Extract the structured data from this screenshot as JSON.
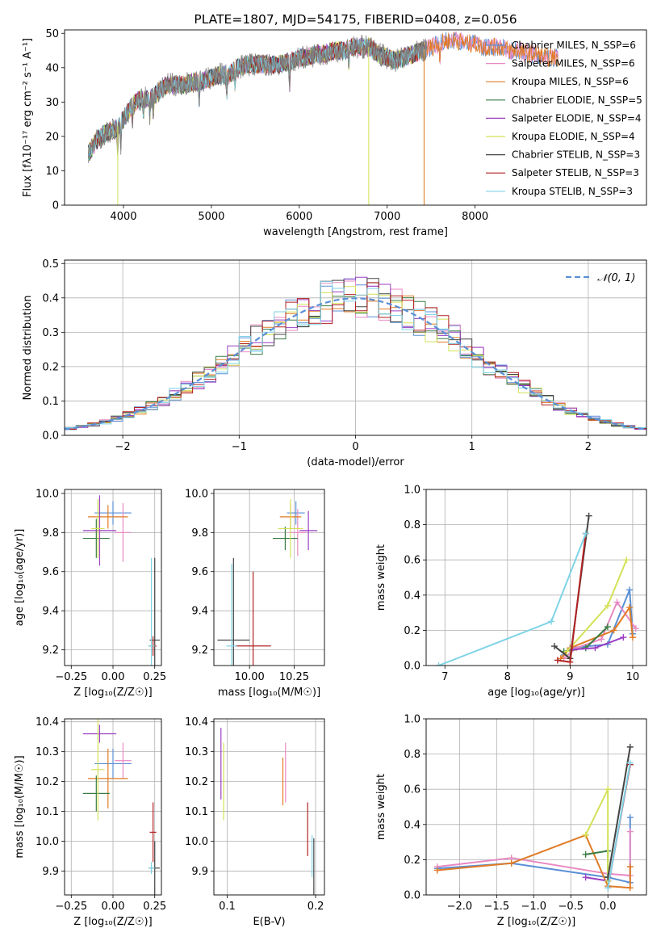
{
  "colors": {
    "Chabrier MILES": "#5a8fd6",
    "Salpeter MILES": "#e78ac3",
    "Kroupa MILES": "#e07b25",
    "Chabrier ELODIE": "#3a7d44",
    "Salpeter ELODIE": "#9a3fc4",
    "Kroupa ELODIE": "#d4e157",
    "Chabrier STELIB": "#444444",
    "Salpeter STELIB": "#b22222",
    "Kroupa STELIB": "#7fd3e6",
    "gaussian": "#5b8fd6",
    "grid": "#b0b0b0"
  },
  "chart_data": [
    {
      "id": "spectrum",
      "type": "line",
      "title": "PLATE=1807, MJD=54175, FIBERID=0408, z=0.056",
      "xlabel": "wavelength [Angstrom, rest frame]",
      "ylabel": "Flux [fλ10⁻¹⁷ erg cm⁻² s⁻¹ A⁻¹]",
      "xlim": [
        3330,
        9950
      ],
      "ylim": [
        0,
        51
      ],
      "xticks": [
        4000,
        5000,
        6000,
        7000,
        8000
      ],
      "yticks": [
        0,
        10,
        20,
        30,
        40,
        50
      ],
      "grid": false,
      "legend": "right",
      "legend_entries": [
        "Chabrier MILES, N_SSP=6",
        "Salpeter MILES, N_SSP=6",
        "Kroupa MILES, N_SSP=6",
        "Chabrier ELODIE, N_SSP=5",
        "Salpeter ELODIE, N_SSP=4",
        "Kroupa ELODIE, N_SSP=4",
        "Chabrier STELIB, N_SSP=3",
        "Salpeter STELIB, N_SSP=3",
        "Kroupa STELIB, N_SSP=3"
      ],
      "continuum": [
        [
          3600,
          15
        ],
        [
          3700,
          19
        ],
        [
          3800,
          21
        ],
        [
          3900,
          22
        ],
        [
          4000,
          25
        ],
        [
          4100,
          29
        ],
        [
          4200,
          31
        ],
        [
          4300,
          31
        ],
        [
          4400,
          33
        ],
        [
          4500,
          35
        ],
        [
          4600,
          35
        ],
        [
          4700,
          35
        ],
        [
          4800,
          36
        ],
        [
          4900,
          36
        ],
        [
          5000,
          37
        ],
        [
          5100,
          38
        ],
        [
          5200,
          38
        ],
        [
          5300,
          40
        ],
        [
          5400,
          41
        ],
        [
          5500,
          41
        ],
        [
          5600,
          41
        ],
        [
          5700,
          41
        ],
        [
          5800,
          41
        ],
        [
          5900,
          42
        ],
        [
          6000,
          43
        ],
        [
          6100,
          43
        ],
        [
          6200,
          44
        ],
        [
          6300,
          44
        ],
        [
          6400,
          45
        ],
        [
          6500,
          45
        ],
        [
          6600,
          46
        ],
        [
          6700,
          46
        ],
        [
          6800,
          46
        ],
        [
          6900,
          44
        ],
        [
          7000,
          43
        ],
        [
          7100,
          42
        ],
        [
          7200,
          43
        ],
        [
          7300,
          44
        ],
        [
          7400,
          45
        ],
        [
          7500,
          46
        ],
        [
          7600,
          47
        ],
        [
          7700,
          48
        ],
        [
          7800,
          48
        ],
        [
          7900,
          47
        ],
        [
          8000,
          47
        ],
        [
          8100,
          46
        ],
        [
          8200,
          46
        ],
        [
          8300,
          46
        ],
        [
          8400,
          45
        ],
        [
          8500,
          45
        ],
        [
          8600,
          44
        ],
        [
          8700,
          44
        ],
        [
          8800,
          43
        ],
        [
          8900,
          43
        ],
        [
          8950,
          43
        ]
      ],
      "absorption_features": [
        [
          3934,
          -8
        ],
        [
          3969,
          -7
        ],
        [
          4102,
          -5
        ],
        [
          4227,
          -4
        ],
        [
          4300,
          -5
        ],
        [
          4340,
          -5
        ],
        [
          4861,
          -5
        ],
        [
          5175,
          -6
        ],
        [
          5270,
          -4
        ],
        [
          5890,
          -7
        ],
        [
          6563,
          -5
        ],
        [
          7600,
          -4
        ]
      ]
    },
    {
      "id": "residuals",
      "type": "histogram",
      "xlabel": "(data-model)/error",
      "ylabel": "Normed distribution",
      "xlim": [
        -2.5,
        2.5
      ],
      "ylim": [
        0,
        0.51
      ],
      "xticks": [
        -2,
        -1,
        0,
        1,
        2
      ],
      "yticks": [
        0.0,
        0.1,
        0.2,
        0.3,
        0.4,
        0.5
      ],
      "grid": true,
      "legend": "top-right",
      "legend_label": "𝒩(0, 1)",
      "bin_width": 0.1
    },
    {
      "id": "age_vs_Z",
      "type": "errorbar",
      "xlabel": "Z [log₁₀(Z/Z☉)]",
      "ylabel": "age  [log₁₀(age/yr)]",
      "xlim": [
        -0.29,
        0.29
      ],
      "ylim": [
        9.12,
        10.02
      ],
      "xticks": [
        -0.25,
        0.0,
        0.25
      ],
      "xticklabels": [
        "−0.25",
        "0.00",
        "0.25"
      ],
      "yticks": [
        9.2,
        9.4,
        9.6,
        9.8,
        10.0
      ],
      "grid": true,
      "points": [
        {
          "name": "Chabrier MILES",
          "x": 0.0,
          "xerr": 0.11,
          "y": 9.9,
          "yerr": 0.06
        },
        {
          "name": "Salpeter MILES",
          "x": 0.06,
          "xerr": 0.05,
          "y": 9.8,
          "yerr": 0.15
        },
        {
          "name": "Kroupa MILES",
          "x": -0.03,
          "xerr": 0.12,
          "y": 9.88,
          "yerr": 0.06
        },
        {
          "name": "Chabrier ELODIE",
          "x": -0.1,
          "xerr": 0.08,
          "y": 9.77,
          "yerr": 0.1
        },
        {
          "name": "Salpeter ELODIE",
          "x": -0.08,
          "xerr": 0.1,
          "y": 9.81,
          "yerr": 0.18
        },
        {
          "name": "Kroupa ELODIE",
          "x": -0.09,
          "xerr": 0.04,
          "y": 9.82,
          "yerr": 0.15
        },
        {
          "name": "Chabrier STELIB",
          "x": 0.25,
          "xerr": 0.03,
          "y": 9.25,
          "yerr": 0.42
        },
        {
          "name": "Salpeter STELIB",
          "x": 0.24,
          "xerr": 0.02,
          "y": 9.22,
          "yerr": 0.05
        },
        {
          "name": "Kroupa STELIB",
          "x": 0.23,
          "xerr": 0.02,
          "y": 9.22,
          "yerr": 0.45
        }
      ]
    },
    {
      "id": "age_vs_mass",
      "type": "errorbar",
      "xlabel": "mass [log₁₀(M/M☉)]",
      "ylabel": "",
      "xlim": [
        9.8,
        10.42
      ],
      "ylim": [
        9.12,
        10.02
      ],
      "xticks": [
        10.0,
        10.25
      ],
      "xticklabels": [
        "10.00",
        "10.25"
      ],
      "yticks": [
        9.2,
        9.4,
        9.6,
        9.8,
        10.0
      ],
      "grid": true,
      "points": [
        {
          "name": "Chabrier MILES",
          "x": 10.26,
          "xerr": 0.05,
          "y": 9.9,
          "yerr": 0.06
        },
        {
          "name": "Salpeter MILES",
          "x": 10.27,
          "xerr": 0.05,
          "y": 9.8,
          "yerr": 0.12
        },
        {
          "name": "Kroupa MILES",
          "x": 10.23,
          "xerr": 0.06,
          "y": 9.88,
          "yerr": 0.06
        },
        {
          "name": "Chabrier ELODIE",
          "x": 10.2,
          "xerr": 0.07,
          "y": 9.77,
          "yerr": 0.06
        },
        {
          "name": "Salpeter ELODIE",
          "x": 10.33,
          "xerr": 0.05,
          "y": 9.81,
          "yerr": 0.1
        },
        {
          "name": "Kroupa ELODIE",
          "x": 10.23,
          "xerr": 0.07,
          "y": 9.82,
          "yerr": 0.15
        },
        {
          "name": "Chabrier STELIB",
          "x": 9.91,
          "xerr": 0.09,
          "y": 9.25,
          "yerr": 0.42
        },
        {
          "name": "Salpeter STELIB",
          "x": 10.02,
          "xerr": 0.1,
          "y": 9.22,
          "yerr": 0.38
        },
        {
          "name": "Kroupa STELIB",
          "x": 9.9,
          "xerr": 0.03,
          "y": 9.22,
          "yerr": 0.42
        }
      ]
    },
    {
      "id": "mass_weight_vs_age",
      "type": "line",
      "xlabel": "age  [log₁₀(age/yr)]",
      "ylabel": "mass weight",
      "xlim": [
        6.7,
        10.22
      ],
      "ylim": [
        0,
        1.0
      ],
      "xticks": [
        7,
        8,
        9,
        10
      ],
      "yticks": [
        0.0,
        0.2,
        0.4,
        0.6,
        0.8,
        1.0
      ],
      "grid": true,
      "series": [
        {
          "name": "Chabrier MILES",
          "x": [
            8.9,
            9.0,
            9.6,
            9.95,
            10.0
          ],
          "y": [
            0.06,
            0.1,
            0.12,
            0.43,
            0.18
          ]
        },
        {
          "name": "Salpeter MILES",
          "x": [
            8.9,
            9.1,
            9.5,
            9.75,
            10.05
          ],
          "y": [
            0.04,
            0.1,
            0.15,
            0.36,
            0.21
          ]
        },
        {
          "name": "Kroupa MILES",
          "x": [
            8.85,
            9.0,
            9.7,
            9.95,
            10.0
          ],
          "y": [
            0.04,
            0.1,
            0.2,
            0.33,
            0.16
          ]
        },
        {
          "name": "Chabrier ELODIE",
          "x": [
            8.9,
            9.25,
            9.6
          ],
          "y": [
            0.08,
            0.1,
            0.22
          ]
        },
        {
          "name": "Salpeter ELODIE",
          "x": [
            9.0,
            9.4,
            9.85
          ],
          "y": [
            0.09,
            0.1,
            0.16
          ]
        },
        {
          "name": "Kroupa ELODIE",
          "x": [
            8.95,
            9.6,
            9.9
          ],
          "y": [
            0.08,
            0.34,
            0.6
          ]
        },
        {
          "name": "Chabrier STELIB",
          "x": [
            8.75,
            9.0,
            9.3
          ],
          "y": [
            0.11,
            0.04,
            0.85
          ]
        },
        {
          "name": "Salpeter STELIB",
          "x": [
            8.8,
            9.0,
            9.25
          ],
          "y": [
            0.03,
            0.02,
            0.75
          ]
        },
        {
          "name": "Kroupa STELIB",
          "x": [
            6.9,
            8.7,
            9.25
          ],
          "y": [
            0.0,
            0.25,
            0.75
          ]
        }
      ]
    },
    {
      "id": "mass_vs_Z",
      "type": "errorbar",
      "xlabel": "Z [log₁₀(Z/Z☉)]",
      "ylabel": "mass [log₁₀(M/M☉)]",
      "xlim": [
        -0.29,
        0.29
      ],
      "ylim": [
        9.82,
        10.41
      ],
      "xticks": [
        -0.25,
        0.0,
        0.25
      ],
      "xticklabels": [
        "−0.25",
        "0.00",
        "0.25"
      ],
      "yticks": [
        9.9,
        10.0,
        10.1,
        10.2,
        10.3,
        10.4
      ],
      "grid": true,
      "points": [
        {
          "name": "Chabrier MILES",
          "x": 0.0,
          "xerr": 0.11,
          "y": 10.26,
          "yerr": 0.05
        },
        {
          "name": "Salpeter MILES",
          "x": 0.06,
          "xerr": 0.05,
          "y": 10.27,
          "yerr": 0.06
        },
        {
          "name": "Kroupa MILES",
          "x": -0.03,
          "xerr": 0.12,
          "y": 10.21,
          "yerr": 0.1
        },
        {
          "name": "Chabrier ELODIE",
          "x": -0.1,
          "xerr": 0.08,
          "y": 10.16,
          "yerr": 0.06
        },
        {
          "name": "Salpeter ELODIE",
          "x": -0.08,
          "xerr": 0.1,
          "y": 10.36,
          "yerr": 0.03
        },
        {
          "name": "Kroupa ELODIE",
          "x": -0.09,
          "xerr": 0.04,
          "y": 10.24,
          "yerr": 0.17
        },
        {
          "name": "Chabrier STELIB",
          "x": 0.25,
          "xerr": 0.03,
          "y": 9.91,
          "yerr": 0.09
        },
        {
          "name": "Salpeter STELIB",
          "x": 0.24,
          "xerr": 0.02,
          "y": 10.03,
          "yerr": 0.1
        },
        {
          "name": "Kroupa STELIB",
          "x": 0.23,
          "xerr": 0.02,
          "y": 9.91,
          "yerr": 0.02
        }
      ]
    },
    {
      "id": "mass_vs_ebv",
      "type": "errorbar",
      "xlabel": "E(B-V)",
      "ylabel": "",
      "xlim": [
        0.085,
        0.21
      ],
      "ylim": [
        9.82,
        10.41
      ],
      "xticks": [
        0.1,
        0.2
      ],
      "xticklabels": [
        "0.1",
        "0.2"
      ],
      "yticks": [
        9.9,
        10.0,
        10.1,
        10.2,
        10.3,
        10.4
      ],
      "grid": true,
      "points": [
        {
          "name": "Salpeter ELODIE",
          "x": 0.093,
          "xerr": 0,
          "y": 10.26,
          "yerr": 0.12
        },
        {
          "name": "Kroupa ELODIE",
          "x": 0.096,
          "xerr": 0,
          "y": 10.2,
          "yerr": 0.13
        },
        {
          "name": "Kroupa MILES",
          "x": 0.163,
          "xerr": 0,
          "y": 10.2,
          "yerr": 0.08
        },
        {
          "name": "Salpeter MILES",
          "x": 0.166,
          "xerr": 0,
          "y": 10.23,
          "yerr": 0.1
        },
        {
          "name": "Salpeter STELIB",
          "x": 0.191,
          "xerr": 0,
          "y": 10.04,
          "yerr": 0.09
        },
        {
          "name": "Kroupa STELIB",
          "x": 0.196,
          "xerr": 0,
          "y": 9.95,
          "yerr": 0.07
        },
        {
          "name": "Chabrier STELIB",
          "x": 0.198,
          "xerr": 0,
          "y": 9.91,
          "yerr": 0.1
        }
      ]
    },
    {
      "id": "mass_weight_vs_Z",
      "type": "line",
      "xlabel": "Z [log₁₀(Z/Z☉)]",
      "ylabel": "mass weight",
      "xlim": [
        -2.45,
        0.52
      ],
      "ylim": [
        0,
        1.0
      ],
      "xticks": [
        -2.0,
        -1.5,
        -1.0,
        -0.5,
        0.0
      ],
      "xticklabels": [
        "−2.0",
        "−1.5",
        "−1.0",
        "−0.5",
        "0.0"
      ],
      "yticks": [
        0.0,
        0.2,
        0.4,
        0.6,
        0.8,
        1.0
      ],
      "grid": true,
      "series": [
        {
          "name": "Chabrier MILES",
          "x": [
            -2.3,
            -1.3,
            0.0,
            0.3,
            0.3
          ],
          "y": [
            0.15,
            0.18,
            0.1,
            0.07,
            0.44
          ]
        },
        {
          "name": "Salpeter MILES",
          "x": [
            -2.3,
            -1.3,
            0.0,
            0.3,
            0.3
          ],
          "y": [
            0.16,
            0.21,
            0.12,
            0.11,
            0.36
          ]
        },
        {
          "name": "Kroupa MILES",
          "x": [
            -2.3,
            -1.3,
            -0.3,
            0.0,
            0.3,
            0.3
          ],
          "y": [
            0.14,
            0.18,
            0.34,
            0.05,
            0.04,
            0.16
          ]
        },
        {
          "name": "Chabrier ELODIE",
          "x": [
            -0.3,
            0.0,
            0.0
          ],
          "y": [
            0.23,
            0.25,
            0.08
          ]
        },
        {
          "name": "Salpeter ELODIE",
          "x": [
            -0.3,
            0.0
          ],
          "y": [
            0.1,
            0.08
          ]
        },
        {
          "name": "Kroupa ELODIE",
          "x": [
            -0.3,
            0.0,
            0.0
          ],
          "y": [
            0.34,
            0.6,
            0.08
          ]
        },
        {
          "name": "Chabrier STELIB",
          "x": [
            0.0,
            0.3
          ],
          "y": [
            0.1,
            0.84
          ]
        },
        {
          "name": "Salpeter STELIB",
          "x": [
            0.0,
            0.3
          ],
          "y": [
            0.04,
            0.74
          ]
        },
        {
          "name": "Kroupa STELIB",
          "x": [
            0.0,
            0.3
          ],
          "y": [
            0.04,
            0.75
          ]
        }
      ]
    }
  ]
}
